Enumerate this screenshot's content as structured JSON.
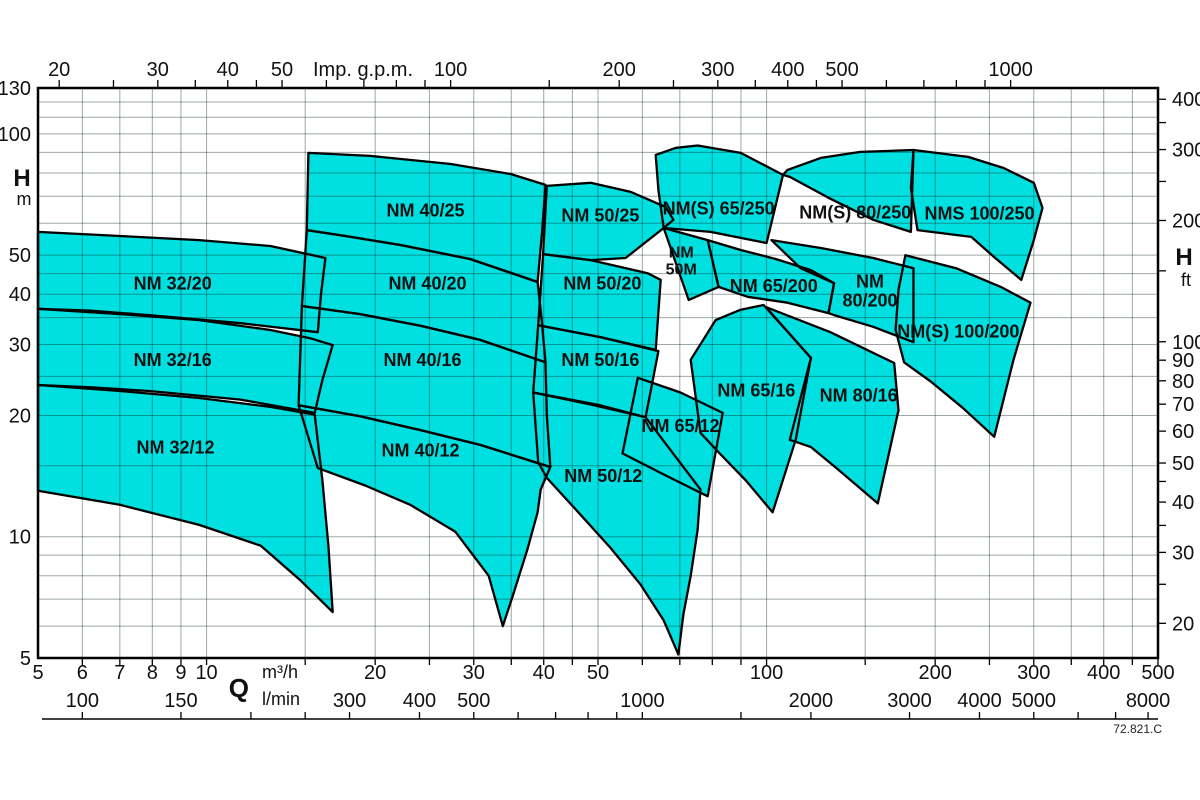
{
  "footer": {
    "code": "72.821.C"
  },
  "colors": {
    "region_fill": "#00e0e0",
    "region_outline": "#000000",
    "grid": "rgba(25,45,45,0.42)",
    "axis": "#000000",
    "text": "#111111"
  },
  "chart_data": {
    "type": "area",
    "title": "",
    "x_primary": {
      "label": "Q",
      "unit": "m³/h",
      "min": 5,
      "max": 500,
      "labeled_ticks": [
        5,
        6,
        7,
        8,
        9,
        10,
        20,
        30,
        40,
        50,
        100,
        200,
        300,
        400,
        500
      ],
      "gridlines": [
        6,
        7,
        8,
        9,
        10,
        15,
        20,
        25,
        30,
        35,
        40,
        45,
        50,
        60,
        70,
        80,
        90,
        100,
        150,
        200,
        250,
        300,
        350,
        400,
        450,
        500
      ]
    },
    "x_secondary_top": {
      "unit": "Imp. g.p.m.",
      "per_m3h": 3.66615,
      "labeled_ticks": [
        20,
        30,
        40,
        50,
        100,
        200,
        300,
        400,
        500,
        1000
      ],
      "minor_ticks": [
        25,
        35,
        45,
        60,
        70,
        80,
        90,
        150,
        250,
        350,
        450,
        600,
        700,
        800,
        900
      ]
    },
    "x_secondary_bottom": {
      "unit": "l/min",
      "per_m3h": 16.6667,
      "labeled_ticks": [
        100,
        150,
        300,
        400,
        500,
        1000,
        2000,
        3000,
        4000,
        5000,
        8000
      ],
      "ticks": [
        100,
        150,
        200,
        250,
        300,
        400,
        500,
        600,
        700,
        800,
        900,
        1000,
        1500,
        2000,
        3000,
        4000,
        5000,
        6000,
        7000,
        8000
      ]
    },
    "y_primary": {
      "label": "H",
      "unit": "m",
      "min": 5,
      "max": 130,
      "labeled_ticks": [
        5,
        10,
        20,
        30,
        40,
        50,
        100,
        130
      ],
      "gridlines": [
        6,
        7,
        8,
        9,
        10,
        15,
        20,
        25,
        30,
        35,
        40,
        45,
        50,
        60,
        70,
        80,
        90,
        100,
        110,
        120,
        130
      ]
    },
    "y_secondary": {
      "label": "H",
      "unit": "ft",
      "per_m": 3.2808,
      "labeled_ticks": [
        20,
        30,
        40,
        50,
        60,
        70,
        80,
        90,
        100,
        200,
        300,
        400
      ],
      "minor_ticks": [
        25,
        35,
        45,
        150,
        250,
        350
      ]
    },
    "regions": [
      {
        "name": "NM 32/20",
        "label_lines": [
          "NM 32/20"
        ],
        "label_at": [
          8.7,
          42.6
        ],
        "points": [
          [
            5,
            57.1
          ],
          [
            7.0,
            55.8
          ],
          [
            9.7,
            54.5
          ],
          [
            13.0,
            52.7
          ],
          [
            16.3,
            49.2
          ],
          [
            16.0,
            39.8
          ],
          [
            15.8,
            32.2
          ],
          [
            11.5,
            33.9
          ],
          [
            7.9,
            35.5
          ],
          [
            6.2,
            36.4
          ],
          [
            5,
            36.8
          ]
        ]
      },
      {
        "name": "NM 32/16",
        "label_lines": [
          "NM 32/16"
        ],
        "label_at": [
          8.7,
          27.5
        ],
        "points": [
          [
            5,
            36.8
          ],
          [
            7.0,
            35.7
          ],
          [
            9.7,
            34.5
          ],
          [
            13.0,
            32.6
          ],
          [
            15.3,
            31.1
          ],
          [
            16.8,
            29.9
          ],
          [
            16.1,
            24.5
          ],
          [
            15.6,
            20.3
          ],
          [
            11.5,
            21.9
          ],
          [
            7.9,
            23.0
          ],
          [
            6.2,
            23.5
          ],
          [
            5,
            23.8
          ]
        ]
      },
      {
        "name": "NM 32/12",
        "label_lines": [
          "NM 32/12"
        ],
        "label_at": [
          8.8,
          16.7
        ],
        "points": [
          [
            5,
            23.8
          ],
          [
            7.0,
            23.0
          ],
          [
            9.7,
            22.1
          ],
          [
            13.0,
            21.0
          ],
          [
            15.6,
            20.1
          ],
          [
            16.1,
            13.8
          ],
          [
            16.5,
            9.5
          ],
          [
            16.8,
            6.5
          ],
          [
            14.7,
            7.8
          ],
          [
            12.5,
            9.5
          ],
          [
            9.7,
            10.7
          ],
          [
            7.0,
            12.0
          ],
          [
            5,
            13.0
          ]
        ]
      },
      {
        "name": "NM 40/25",
        "label_lines": [
          "NM 40/25"
        ],
        "label_at": [
          24.6,
          64.8
        ],
        "points": [
          [
            15.2,
            89.7
          ],
          [
            19.6,
            88.2
          ],
          [
            27.3,
            84.2
          ],
          [
            34.9,
            79.5
          ],
          [
            40.3,
            74.7
          ],
          [
            39.7,
            56.4
          ],
          [
            39.0,
            42.9
          ],
          [
            29.6,
            48.9
          ],
          [
            22.2,
            53.0
          ],
          [
            17.7,
            55.8
          ],
          [
            15.1,
            57.7
          ]
        ]
      },
      {
        "name": "NM 40/20",
        "label_lines": [
          "NM 40/20"
        ],
        "label_at": [
          24.8,
          42.6
        ],
        "points": [
          [
            15.1,
            57.7
          ],
          [
            17.7,
            55.8
          ],
          [
            22.2,
            53.0
          ],
          [
            29.6,
            48.9
          ],
          [
            39.0,
            42.9
          ],
          [
            39.7,
            34.1
          ],
          [
            40.3,
            27.1
          ],
          [
            30.8,
            30.8
          ],
          [
            24.1,
            33.4
          ],
          [
            18.8,
            35.7
          ],
          [
            14.8,
            37.4
          ]
        ]
      },
      {
        "name": "NM 40/16",
        "label_lines": [
          "NM 40/16"
        ],
        "label_at": [
          24.3,
          27.5
        ],
        "points": [
          [
            14.8,
            37.4
          ],
          [
            18.8,
            35.7
          ],
          [
            24.1,
            33.4
          ],
          [
            30.8,
            30.8
          ],
          [
            40.3,
            27.1
          ],
          [
            40.5,
            20.1
          ],
          [
            41.1,
            14.9
          ],
          [
            30.8,
            16.9
          ],
          [
            24.1,
            18.4
          ],
          [
            18.8,
            19.9
          ],
          [
            14.6,
            21.2
          ]
        ]
      },
      {
        "name": "NM 40/12",
        "label_lines": [
          "NM 40/12"
        ],
        "label_at": [
          24.1,
          16.4
        ],
        "points": [
          [
            14.6,
            21.2
          ],
          [
            18.8,
            19.9
          ],
          [
            24.1,
            18.4
          ],
          [
            30.8,
            16.9
          ],
          [
            41.1,
            14.9
          ],
          [
            39.5,
            13.1
          ],
          [
            39.0,
            11.5
          ],
          [
            37.4,
            9.3
          ],
          [
            35.3,
            7.2
          ],
          [
            33.8,
            6.0
          ],
          [
            31.9,
            8.0
          ],
          [
            27.8,
            10.3
          ],
          [
            23.1,
            12.0
          ],
          [
            19.2,
            13.4
          ],
          [
            15.8,
            14.8
          ]
        ]
      },
      {
        "name": "NM 50/25",
        "label_lines": [
          "NM 50/25"
        ],
        "label_at": [
          50.5,
          62.9
        ],
        "points": [
          [
            40.5,
            74.3
          ],
          [
            48.5,
            75.6
          ],
          [
            57.2,
            71.8
          ],
          [
            66.0,
            65.9
          ],
          [
            68.2,
            61.2
          ],
          [
            65.5,
            58.4
          ],
          [
            56.0,
            49.2
          ],
          [
            48.5,
            48.6
          ],
          [
            39.9,
            50.3
          ]
        ]
      },
      {
        "name": "NM 50M",
        "label_lines": [
          "NM",
          "50M"
        ],
        "label_at": [
          70.4,
          48.6
        ],
        "font_size": 16,
        "points": [
          [
            65.5,
            58.4
          ],
          [
            78.5,
            54.5
          ],
          [
            82.1,
            41.7
          ],
          [
            72.6,
            38.7
          ]
        ]
      },
      {
        "name": "NM 50/20",
        "label_lines": [
          "NM 50/20"
        ],
        "label_at": [
          50.9,
          42.6
        ],
        "points": [
          [
            39.9,
            50.3
          ],
          [
            48.5,
            48.6
          ],
          [
            61.3,
            45.1
          ],
          [
            64.7,
            43.4
          ],
          [
            63.4,
            29.1
          ],
          [
            50.5,
            31.3
          ],
          [
            39.1,
            33.5
          ]
        ]
      },
      {
        "name": "NM 50/16",
        "label_lines": [
          "NM 50/16"
        ],
        "label_at": [
          50.5,
          27.5
        ],
        "points": [
          [
            39.1,
            33.5
          ],
          [
            50.5,
            31.3
          ],
          [
            64.1,
            28.9
          ],
          [
            60.8,
            19.8
          ],
          [
            50.5,
            21.2
          ],
          [
            38.3,
            22.8
          ]
        ]
      },
      {
        "name": "NM 50/12",
        "label_lines": [
          "NM 50/12"
        ],
        "label_at": [
          51.1,
          14.2
        ],
        "points": [
          [
            38.3,
            22.8
          ],
          [
            48.5,
            21.3
          ],
          [
            60.8,
            19.8
          ],
          [
            67.4,
            16.4
          ],
          [
            76.2,
            13.1
          ],
          [
            75.3,
            10.4
          ],
          [
            73.2,
            8.0
          ],
          [
            71.0,
            6.4
          ],
          [
            69.6,
            5.1
          ],
          [
            65.5,
            6.2
          ],
          [
            59.6,
            7.6
          ],
          [
            52.6,
            9.4
          ],
          [
            45.6,
            11.7
          ],
          [
            40.5,
            14.0
          ],
          [
            39.1,
            15.3
          ]
        ]
      },
      {
        "name": "NM 65/12",
        "label_lines": [
          "NM 65/12"
        ],
        "label_at": [
          70.2,
          18.9
        ],
        "points": [
          [
            58.9,
            24.8
          ],
          [
            70.2,
            22.8
          ],
          [
            83.5,
            20.3
          ],
          [
            78.5,
            12.6
          ],
          [
            66.0,
            14.2
          ],
          [
            55.3,
            16.1
          ]
        ]
      },
      {
        "name": "NM 65/16",
        "label_lines": [
          "NM 65/16"
        ],
        "label_at": [
          95.9,
          23.1
        ],
        "points": [
          [
            81.1,
            34.5
          ],
          [
            89.9,
            36.6
          ],
          [
            98.8,
            37.6
          ],
          [
            120,
            27.8
          ],
          [
            112.7,
            17.4
          ],
          [
            102.5,
            11.5
          ],
          [
            91.8,
            13.8
          ],
          [
            82.1,
            16.2
          ],
          [
            76.2,
            18.1
          ],
          [
            73.2,
            27.5
          ]
        ]
      },
      {
        "name": "NM 80/16",
        "label_lines": [
          "NM 80/16"
        ],
        "label_at": [
          146,
          22.5
        ],
        "points": [
          [
            99.6,
            37.2
          ],
          [
            130,
            32.2
          ],
          [
            169,
            27.0
          ],
          [
            172,
            20.6
          ],
          [
            158,
            12.1
          ],
          [
            134,
            14.7
          ],
          [
            120,
            16.7
          ],
          [
            110,
            17.4
          ],
          [
            120,
            27.8
          ]
        ]
      },
      {
        "name": "NM(S) 65/250",
        "label_lines": [
          "NM(S) 65/250"
        ],
        "label_at": [
          82.1,
          65.5
        ],
        "points": [
          [
            63.4,
            88.7
          ],
          [
            68.8,
            92.3
          ],
          [
            75.3,
            93.6
          ],
          [
            89.9,
            89.7
          ],
          [
            107,
            79.1
          ],
          [
            100,
            53.6
          ],
          [
            79.4,
            57.1
          ],
          [
            65.5,
            58.4
          ],
          [
            64.1,
            72.6
          ]
        ]
      },
      {
        "name": "NM 65/200",
        "label_lines": [
          "NM 65/200"
        ],
        "label_at": [
          103,
          42.0
        ],
        "points": [
          [
            78.5,
            54.5
          ],
          [
            89.9,
            51.5
          ],
          [
            104,
            48.9
          ],
          [
            120,
            45.9
          ],
          [
            132,
            42.6
          ],
          [
            129,
            35.9
          ],
          [
            109,
            38.1
          ],
          [
            92.5,
            39.4
          ],
          [
            82.1,
            41.7
          ]
        ]
      },
      {
        "name": "NM(S) 80/250",
        "label_lines": [
          "NM(S) 80/250"
        ],
        "label_at": [
          144,
          64.0
        ],
        "points": [
          [
            109,
            81.4
          ],
          [
            125,
            87.2
          ],
          [
            147,
            90.2
          ],
          [
            183,
            91.2
          ],
          [
            182,
            71.8
          ],
          [
            181,
            57.1
          ],
          [
            155,
            61.2
          ],
          [
            129,
            69.4
          ],
          [
            110,
            78.2
          ],
          [
            107,
            79.1
          ]
        ]
      },
      {
        "name": "NM 80/200",
        "label_lines": [
          "NM",
          "80/200"
        ],
        "label_at": [
          153,
          40.9
        ],
        "points": [
          [
            102,
            54.5
          ],
          [
            125,
            52.1
          ],
          [
            155,
            49.2
          ],
          [
            183,
            46.4
          ],
          [
            183,
            37.6
          ],
          [
            183,
            30.4
          ],
          [
            155,
            33.2
          ],
          [
            132,
            35.5
          ],
          [
            129,
            35.9
          ],
          [
            132,
            42.6
          ],
          [
            115,
            46.4
          ]
        ]
      },
      {
        "name": "NMS 100/250",
        "label_lines": [
          "NMS 100/250"
        ],
        "label_at": [
          240,
          63.7
        ],
        "points": [
          [
            183,
            91.2
          ],
          [
            229,
            87.7
          ],
          [
            265,
            82.3
          ],
          [
            300,
            75.6
          ],
          [
            311,
            65.5
          ],
          [
            300,
            54.5
          ],
          [
            285,
            43.4
          ],
          [
            256,
            49.2
          ],
          [
            232,
            55.5
          ],
          [
            186,
            57.7
          ],
          [
            181,
            73.4
          ]
        ]
      },
      {
        "name": "NM(S) 100/200",
        "label_lines": [
          "NM(S) 100/200"
        ],
        "label_at": [
          220,
          32.4
        ],
        "points": [
          [
            177,
            50.0
          ],
          [
            218,
            46.4
          ],
          [
            262,
            41.7
          ],
          [
            296,
            38.1
          ],
          [
            276,
            27.5
          ],
          [
            255,
            17.7
          ],
          [
            224,
            20.9
          ],
          [
            197,
            24.2
          ],
          [
            176,
            27.1
          ],
          [
            170,
            32.6
          ],
          [
            172,
            41.0
          ]
        ]
      }
    ]
  }
}
